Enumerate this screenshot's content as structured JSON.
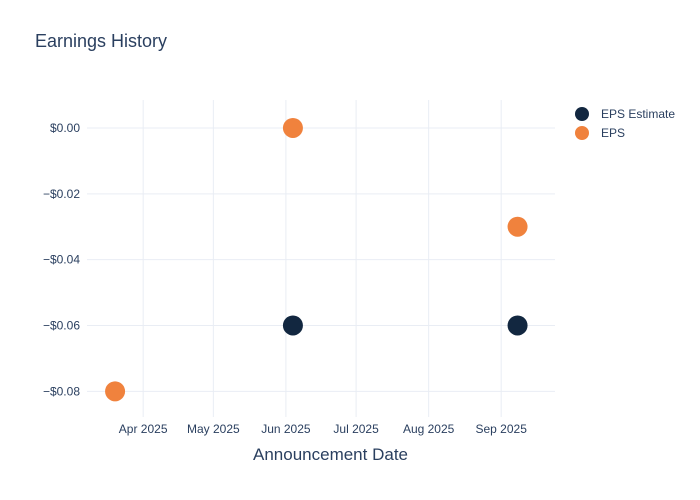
{
  "chart_data": {
    "type": "scatter",
    "title": "Earnings History",
    "xlabel": "Announcement Date",
    "ylabel": "",
    "grid": true,
    "legend_position": "top-right-outside",
    "x_range": [
      "2025-03-08",
      "2025-09-24"
    ],
    "y_range": [
      -0.0878,
      0.0085
    ],
    "x_ticks": [
      {
        "date": "2025-04-01",
        "label": "Apr 2025"
      },
      {
        "date": "2025-05-01",
        "label": "May 2025"
      },
      {
        "date": "2025-06-01",
        "label": "Jun 2025"
      },
      {
        "date": "2025-07-01",
        "label": "Jul 2025"
      },
      {
        "date": "2025-08-01",
        "label": "Aug 2025"
      },
      {
        "date": "2025-09-01",
        "label": "Sep 2025"
      }
    ],
    "y_ticks": [
      {
        "value": 0,
        "label": "$0.00"
      },
      {
        "value": -0.02,
        "label": "−$0.02"
      },
      {
        "value": -0.04,
        "label": "−$0.04"
      },
      {
        "value": -0.06,
        "label": "−$0.06"
      },
      {
        "value": -0.08,
        "label": "−$0.08"
      }
    ],
    "series": [
      {
        "name": "EPS Estimate",
        "color": "#122740",
        "points": [
          {
            "date": "2025-06-04",
            "value": -0.06
          },
          {
            "date": "2025-09-08",
            "value": -0.06
          }
        ]
      },
      {
        "name": "EPS",
        "color": "#F0823D",
        "points": [
          {
            "date": "2025-03-20",
            "value": -0.08
          },
          {
            "date": "2025-06-04",
            "value": 0.0
          },
          {
            "date": "2025-09-08",
            "value": -0.03
          }
        ]
      }
    ],
    "colors": {
      "text": "#2A3F5F",
      "grid": "#E9EDF4",
      "background": "#FFFFFF"
    }
  }
}
